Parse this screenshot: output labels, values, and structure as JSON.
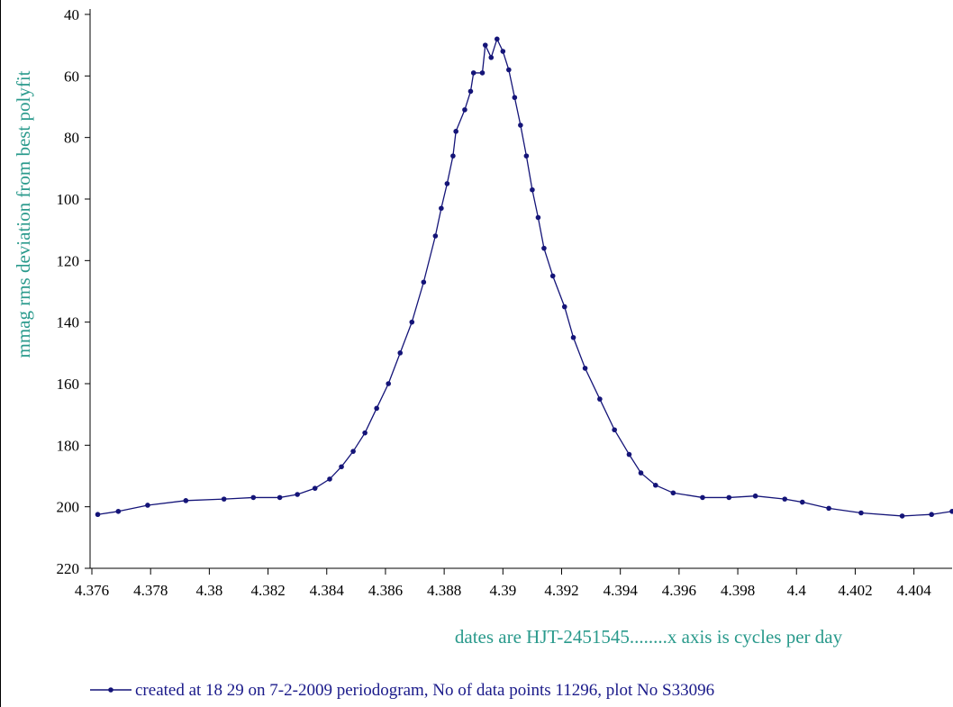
{
  "chart_data": {
    "type": "line",
    "y_label": "mmag rms deviation from best polyfit",
    "x_label": "dates are HJT-2451545........x axis is cycles per day",
    "x": [
      4.3762,
      4.3769,
      4.3779,
      4.3792,
      4.3805,
      4.3815,
      4.3824,
      4.383,
      4.3836,
      4.3841,
      4.3845,
      4.3849,
      4.3853,
      4.3857,
      4.3861,
      4.3865,
      4.3869,
      4.3873,
      4.3877,
      4.3879,
      4.3881,
      4.3883,
      4.3884,
      4.3887,
      4.3889,
      4.389,
      4.3893,
      4.3894,
      4.3896,
      4.3898,
      4.39,
      4.3902,
      4.3904,
      4.3906,
      4.3908,
      4.391,
      4.3912,
      4.3914,
      4.3917,
      4.3921,
      4.3924,
      4.3928,
      4.3933,
      4.3938,
      4.3943,
      4.3947,
      4.3952,
      4.3958,
      4.3968,
      4.3977,
      4.3986,
      4.3996,
      4.4002,
      4.4011,
      4.4022,
      4.4036,
      4.4046,
      4.4053
    ],
    "series": [
      {
        "name": "created at 18 29 on 7-2-2009 periodogram, No of data points 11296,  plot No S33096",
        "color": "#141478",
        "values": [
          202.5,
          201.5,
          199.5,
          198,
          197.5,
          197,
          197,
          196,
          194,
          191,
          187,
          182,
          176,
          168,
          160,
          150,
          140,
          127,
          112,
          103,
          95,
          86,
          78,
          71,
          65,
          59,
          59,
          50,
          54,
          48,
          52,
          58,
          67,
          76,
          86,
          97,
          106,
          116,
          125,
          135,
          145,
          155,
          165,
          175,
          183,
          189,
          193,
          195.5,
          197,
          197,
          196.5,
          197.5,
          198.5,
          200.5,
          202,
          203,
          202.5,
          201.5
        ]
      }
    ],
    "xlim": [
      4.376,
      4.4053
    ],
    "ylim": [
      220,
      40
    ],
    "xticks": [
      4.376,
      4.378,
      4.38,
      4.382,
      4.384,
      4.386,
      4.388,
      4.39,
      4.392,
      4.394,
      4.396,
      4.398,
      4.4,
      4.402,
      4.404
    ],
    "yticks": [
      40,
      60,
      80,
      100,
      120,
      140,
      160,
      180,
      200,
      220
    ],
    "grid": false
  }
}
